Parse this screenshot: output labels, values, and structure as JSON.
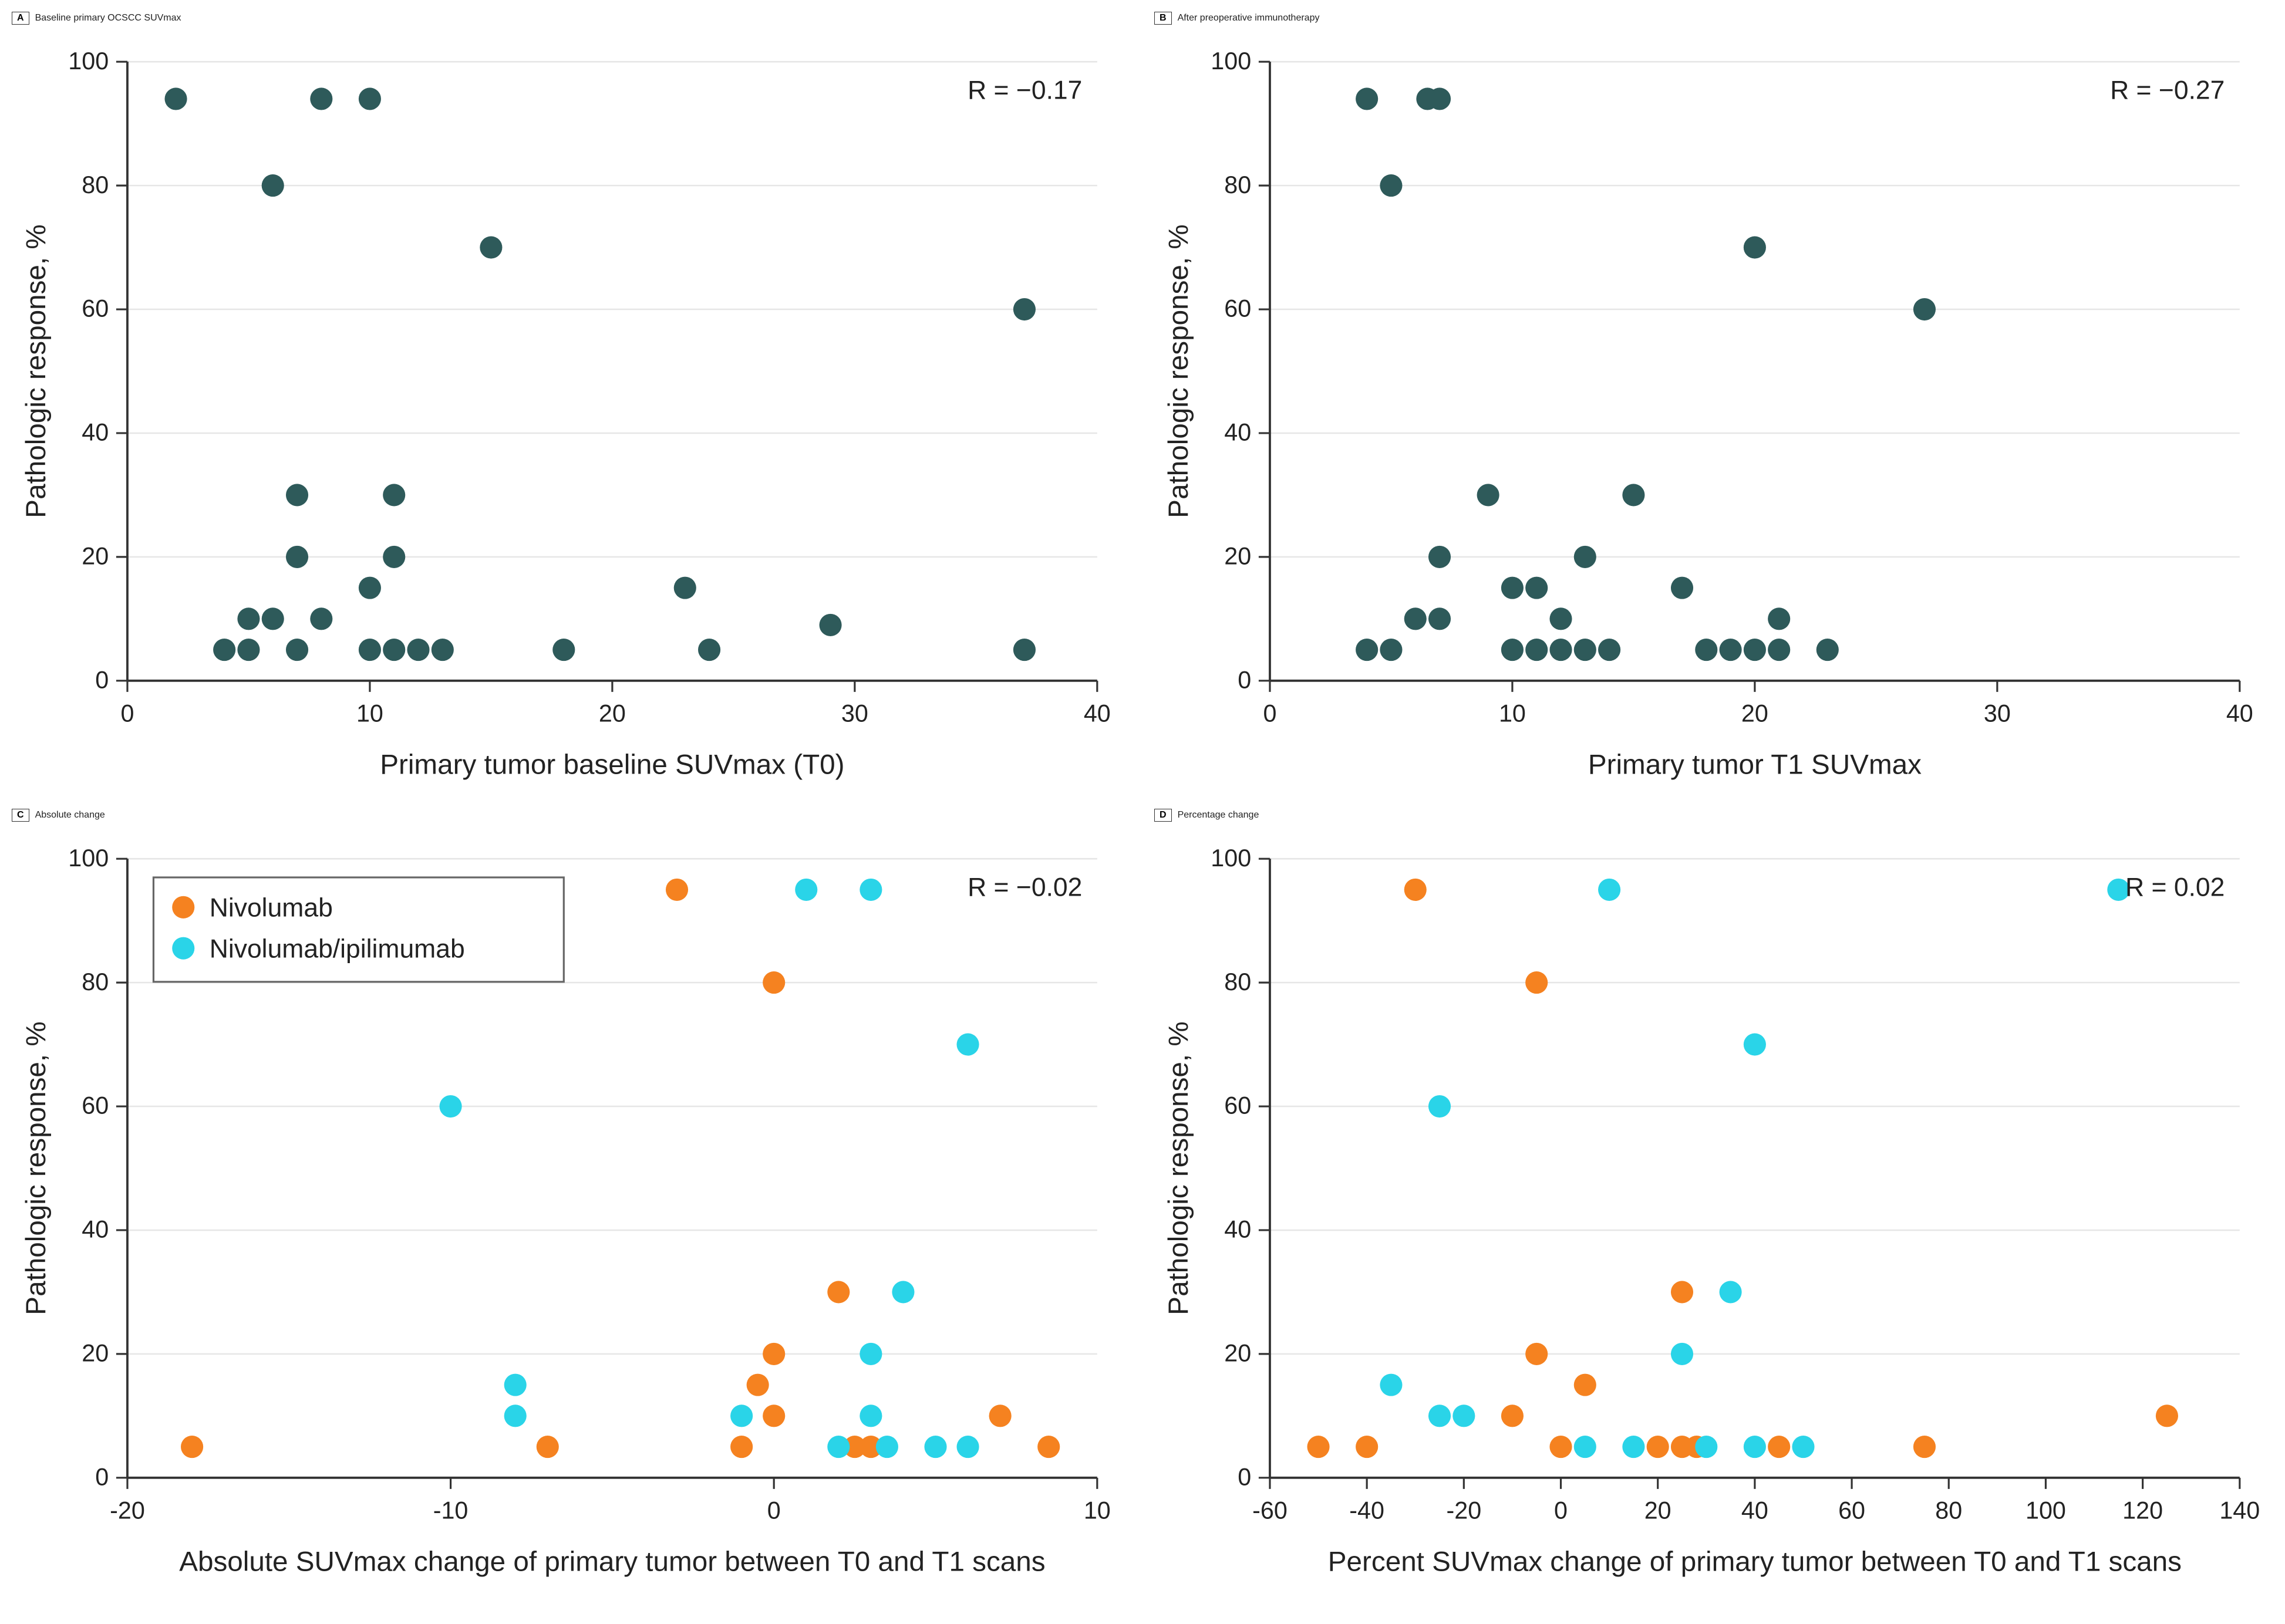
{
  "colors": {
    "background": "#ffffff",
    "axis": "#333333",
    "grid": "#e6e6e6",
    "text": "#222222",
    "marker_single": "#2e5a5a",
    "series": {
      "nivolumab": "#f58220",
      "nivolumab_ipilimumab": "#2ad4e8"
    }
  },
  "marker": {
    "radius": 6,
    "stroke": "none"
  },
  "legend": {
    "items": [
      {
        "label": "Nivolumab",
        "color_key": "nivolumab"
      },
      {
        "label": "Nivolumab/ipilimumab",
        "color_key": "nivolumab_ipilimumab"
      }
    ]
  },
  "panels": {
    "A": {
      "letter": "A",
      "title": "Baseline primary OCSCC SUVmax",
      "xlabel": "Primary tumor baseline SUVmax (T0)",
      "ylabel": "Pathologic response, %",
      "r_text": "R = −0.17",
      "xlim": [
        0,
        40
      ],
      "xtick_step": 10,
      "ylim": [
        0,
        100
      ],
      "ytick_step": 20,
      "series": [
        {
          "color_key": "single",
          "points": [
            [
              2,
              94
            ],
            [
              8,
              94
            ],
            [
              10,
              94
            ],
            [
              6,
              80
            ],
            [
              15,
              70
            ],
            [
              37,
              60
            ],
            [
              7,
              30
            ],
            [
              11,
              30
            ],
            [
              7,
              20
            ],
            [
              11,
              20
            ],
            [
              10,
              15
            ],
            [
              23,
              15
            ],
            [
              5,
              10
            ],
            [
              6,
              10
            ],
            [
              8,
              10
            ],
            [
              29,
              9
            ],
            [
              4,
              5
            ],
            [
              5,
              5
            ],
            [
              7,
              5
            ],
            [
              10,
              5
            ],
            [
              11,
              5
            ],
            [
              12,
              5
            ],
            [
              13,
              5
            ],
            [
              18,
              5
            ],
            [
              24,
              5
            ],
            [
              37,
              5
            ]
          ]
        }
      ]
    },
    "B": {
      "letter": "B",
      "title": "After preoperative immunotherapy",
      "xlabel": "Primary tumor T1 SUVmax",
      "ylabel": "Pathologic response, %",
      "r_text": "R = −0.27",
      "xlim": [
        0,
        40
      ],
      "xtick_step": 10,
      "ylim": [
        0,
        100
      ],
      "ytick_step": 20,
      "series": [
        {
          "color_key": "single",
          "points": [
            [
              4,
              94
            ],
            [
              6.5,
              94
            ],
            [
              7,
              94
            ],
            [
              5,
              80
            ],
            [
              20,
              70
            ],
            [
              27,
              60
            ],
            [
              9,
              30
            ],
            [
              15,
              30
            ],
            [
              7,
              20
            ],
            [
              13,
              20
            ],
            [
              10,
              15
            ],
            [
              11,
              15
            ],
            [
              17,
              15
            ],
            [
              6,
              10
            ],
            [
              7,
              10
            ],
            [
              12,
              10
            ],
            [
              21,
              10
            ],
            [
              4,
              5
            ],
            [
              5,
              5
            ],
            [
              10,
              5
            ],
            [
              11,
              5
            ],
            [
              12,
              5
            ],
            [
              13,
              5
            ],
            [
              14,
              5
            ],
            [
              18,
              5
            ],
            [
              19,
              5
            ],
            [
              20,
              5
            ],
            [
              21,
              5
            ],
            [
              23,
              5
            ]
          ]
        }
      ]
    },
    "C": {
      "letter": "C",
      "title": "Absolute change",
      "xlabel": "Absolute SUVmax change of primary tumor between T0 and T1 scans",
      "ylabel": "Pathologic response, %",
      "r_text": "R = −0.02",
      "xlim": [
        -20,
        10
      ],
      "xtick_step": 10,
      "ylim": [
        0,
        100
      ],
      "ytick_step": 20,
      "show_legend": true,
      "series": [
        {
          "color_key": "nivolumab",
          "points": [
            [
              -3,
              95
            ],
            [
              0,
              80
            ],
            [
              2,
              30
            ],
            [
              0,
              20
            ],
            [
              -0.5,
              15
            ],
            [
              0,
              10
            ],
            [
              7,
              10
            ],
            [
              -18,
              5
            ],
            [
              -7,
              5
            ],
            [
              -1,
              5
            ],
            [
              2.5,
              5
            ],
            [
              3,
              5
            ],
            [
              8.5,
              5
            ]
          ]
        },
        {
          "color_key": "nivolumab_ipilimumab",
          "points": [
            [
              1,
              95
            ],
            [
              3,
              95
            ],
            [
              6,
              70
            ],
            [
              -10,
              60
            ],
            [
              4,
              30
            ],
            [
              3,
              20
            ],
            [
              -8,
              15
            ],
            [
              -1,
              10
            ],
            [
              3,
              10
            ],
            [
              -8,
              10
            ],
            [
              2,
              5
            ],
            [
              3.5,
              5
            ],
            [
              5,
              5
            ],
            [
              6,
              5
            ]
          ]
        }
      ]
    },
    "D": {
      "letter": "D",
      "title": "Percentage change",
      "xlabel": "Percent SUVmax change of primary tumor between T0 and T1 scans",
      "ylabel": "Pathologic response, %",
      "r_text": "R = 0.02",
      "xlim": [
        -60,
        140
      ],
      "xtick_step": 20,
      "ylim": [
        0,
        100
      ],
      "ytick_step": 20,
      "series": [
        {
          "color_key": "nivolumab",
          "points": [
            [
              -30,
              95
            ],
            [
              -5,
              80
            ],
            [
              25,
              30
            ],
            [
              -5,
              20
            ],
            [
              5,
              15
            ],
            [
              -10,
              10
            ],
            [
              125,
              10
            ],
            [
              -50,
              5
            ],
            [
              -40,
              5
            ],
            [
              0,
              5
            ],
            [
              20,
              5
            ],
            [
              25,
              5
            ],
            [
              28,
              5
            ],
            [
              45,
              5
            ],
            [
              75,
              5
            ]
          ]
        },
        {
          "color_key": "nivolumab_ipilimumab",
          "points": [
            [
              10,
              95
            ],
            [
              115,
              95
            ],
            [
              40,
              70
            ],
            [
              -25,
              60
            ],
            [
              35,
              30
            ],
            [
              25,
              20
            ],
            [
              -35,
              15
            ],
            [
              -25,
              10
            ],
            [
              -20,
              10
            ],
            [
              30,
              5
            ],
            [
              40,
              5
            ],
            [
              50,
              5
            ],
            [
              5,
              5
            ],
            [
              15,
              5
            ]
          ]
        }
      ]
    }
  }
}
